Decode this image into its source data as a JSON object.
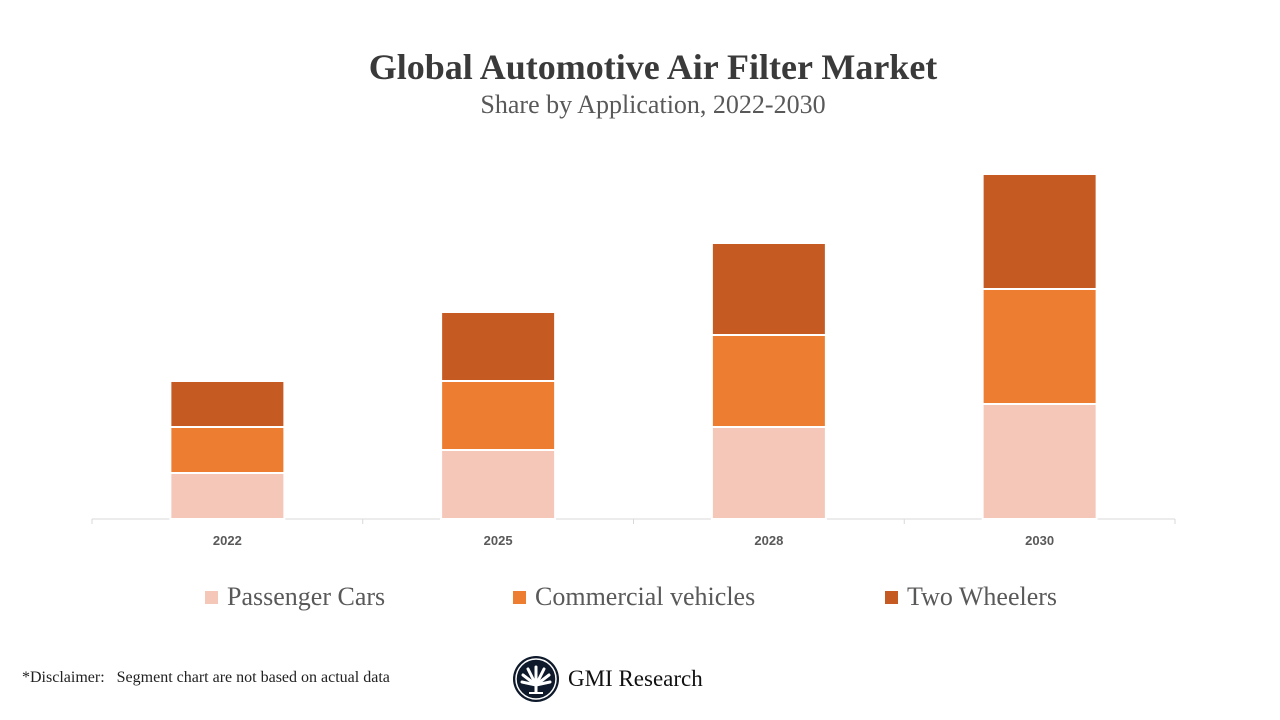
{
  "chart_data": {
    "type": "bar",
    "stacked": true,
    "title": "Global Automotive Air Filter Market",
    "subtitle": "Share by Application, 2022-2030",
    "categories": [
      "2022",
      "2025",
      "2028",
      "2030"
    ],
    "series": [
      {
        "name": "Passenger Cars",
        "color": "#F4C7B8",
        "values": [
          2,
          3,
          4,
          5
        ]
      },
      {
        "name": "Commercial vehicles",
        "color": "#ED7D31",
        "values": [
          2,
          3,
          4,
          5
        ]
      },
      {
        "name": "Two Wheelers",
        "color": "#C55A22",
        "values": [
          2,
          3,
          4,
          5
        ]
      }
    ],
    "y_axis_shown": false,
    "grid": false,
    "legend_position": "bottom"
  },
  "footer": {
    "disclaimer": "*Disclaimer:   Segment chart are not based on actual data",
    "brand": "GMI Research"
  }
}
